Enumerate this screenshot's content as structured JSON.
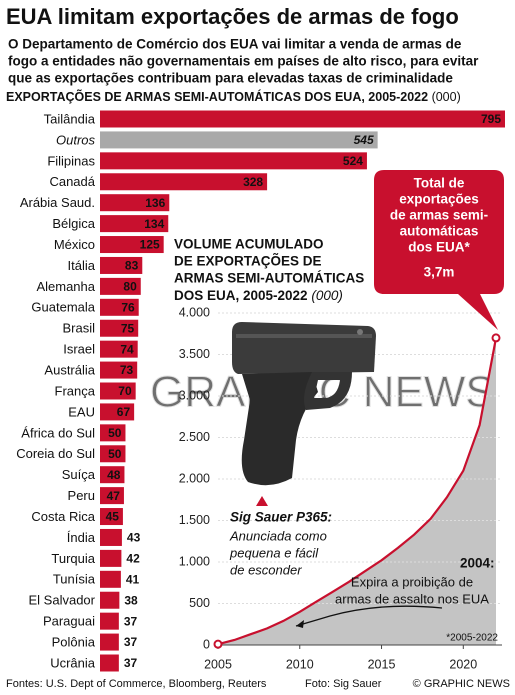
{
  "chart_data": {
    "type": "bar",
    "title": "EUA limitam exportações de armas de fogo",
    "subtitle": [
      "O Departamento de Comércio dos EUA vai limitar a venda de armas de",
      "fogo a entidades não governamentais em países de alto risco, para evitar",
      "que as exportações contribuam para elevadas taxas de criminalidade"
    ],
    "bar_heading": "EXPORTAÇÕES DE ARMAS SEMI-AUTOMÁTICAS DOS EUA, 2005-2022",
    "bar_unit": "(000)",
    "categories": [
      "Tailândia",
      "Outros",
      "Filipinas",
      "Canadá",
      "Arábia Saud.",
      "Bélgica",
      "México",
      "Itália",
      "Alemanha",
      "Guatemala",
      "Brasil",
      "Israel",
      "Austrália",
      "França",
      "EAU",
      "África do Sul",
      "Coreia do Sul",
      "Suíça",
      "Peru",
      "Costa Rica",
      "Índia",
      "Turquia",
      "Tunísia",
      "El Salvador",
      "Paraguai",
      "Polônia",
      "Ucrânia"
    ],
    "values": [
      795,
      545,
      524,
      328,
      136,
      134,
      125,
      83,
      80,
      76,
      75,
      74,
      73,
      70,
      67,
      50,
      50,
      48,
      47,
      45,
      43,
      42,
      41,
      38,
      37,
      37,
      37
    ],
    "color": "#c8102e",
    "colors": [
      "#c8102e",
      "#a9a9a9",
      "#c8102e",
      "#c8102e",
      "#c8102e",
      "#c8102e",
      "#c8102e",
      "#c8102e",
      "#c8102e",
      "#c8102e",
      "#c8102e",
      "#c8102e",
      "#c8102e",
      "#c8102e",
      "#c8102e",
      "#c8102e",
      "#c8102e",
      "#c8102e",
      "#c8102e",
      "#c8102e",
      "#c8102e",
      "#c8102e",
      "#c8102e",
      "#c8102e",
      "#c8102e",
      "#c8102e",
      "#c8102e"
    ],
    "inset": {
      "type": "area",
      "x": [
        2005,
        2006,
        2007,
        2008,
        2009,
        2010,
        2011,
        2012,
        2013,
        2014,
        2015,
        2016,
        2017,
        2018,
        2019,
        2020,
        2021,
        2022
      ],
      "values": [
        10,
        60,
        130,
        200,
        290,
        400,
        520,
        640,
        760,
        890,
        1020,
        1170,
        1330,
        1520,
        1780,
        2100,
        2650,
        3700
      ],
      "color": "#c8102e",
      "fill": "#c4c4c4",
      "xlim": [
        2005,
        2022
      ],
      "xticks": [
        2005,
        2010,
        2015,
        2020
      ],
      "ylim": [
        0,
        4000
      ],
      "yticks": [
        0,
        500,
        {
          "value": 1000,
          "label": "1.000"
        },
        {
          "value": 1500,
          "label": "1.500"
        },
        {
          "value": 2000,
          "label": "2.000"
        },
        {
          "value": 2500,
          "label": "2.500"
        },
        {
          "value": 3000,
          "label": "3.000"
        },
        {
          "value": 3500,
          "label": "3.500"
        },
        {
          "value": 4000,
          "label": "4.000"
        }
      ],
      "grid": true
    },
    "inset_title": [
      "VOLUME ACUMULADO",
      "DE EXPORTAÇÕES DE",
      "ARMAS SEMI-AUTOMÁTICAS",
      "DOS EUA, 2005-2022"
    ],
    "inset_unit": "(000)",
    "callout": [
      "Total de",
      "exportações",
      "de armas semi-",
      "automáticas",
      "dos EUA*"
    ],
    "callout_total": "3,7m",
    "photo_caption": [
      "Sig Sauer P365:",
      "Anunciada como",
      "pequena e fácil",
      "de esconder"
    ],
    "annotation": [
      "2004:",
      "Expira a proibição de",
      "armas de assalto nos EUA"
    ],
    "footnote": "*2005-2022",
    "watermark": "GRAPHIC NEWS",
    "source": "Fontes: U.S. Dept of Commerce, Bloomberg, Reuters",
    "photo_credit": "Foto: Sig Sauer",
    "credit": "© GRAPHIC NEWS"
  }
}
